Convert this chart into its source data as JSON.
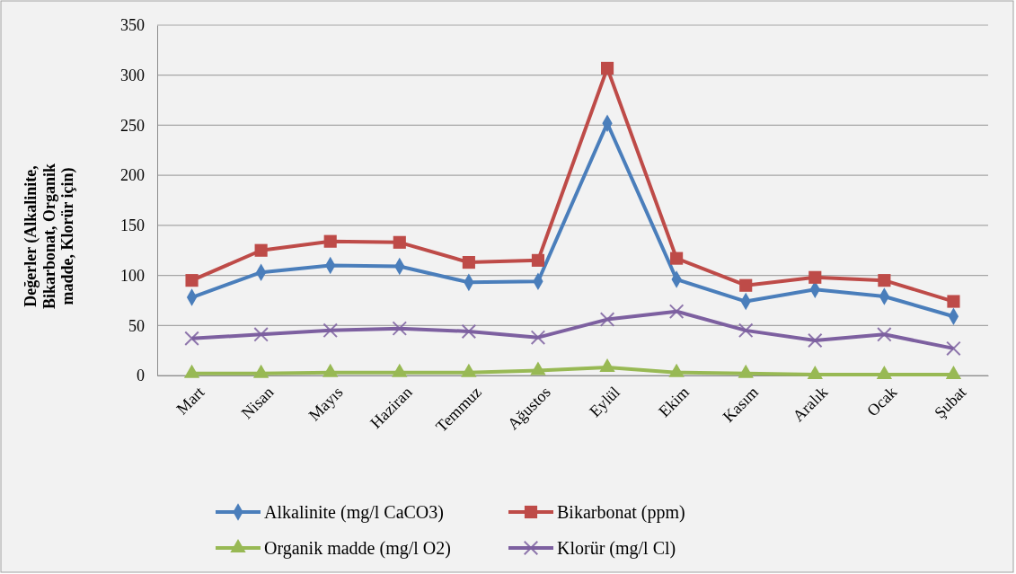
{
  "chart_data": {
    "type": "line",
    "ylabel": "Değerler (Alkalinite, Bikarbonat, Organik madde, Klorür için)",
    "categories": [
      "Mart",
      "Nisan",
      "Mayıs",
      "Haziran",
      "Temmuz",
      "Ağustos",
      "Eylül",
      "Ekim",
      "Kasım",
      "Aralık",
      "Ocak",
      "Şubat"
    ],
    "series": [
      {
        "name": "Alkalinite (mg/l CaCO3)",
        "color": "#4a7ebb",
        "marker": "diamond",
        "values": [
          78,
          103,
          110,
          109,
          93,
          94,
          252,
          96,
          74,
          86,
          79,
          59
        ]
      },
      {
        "name": "Bikarbonat (ppm)",
        "color": "#be4b48",
        "marker": "square",
        "values": [
          95,
          125,
          134,
          133,
          113,
          115,
          307,
          117,
          90,
          98,
          95,
          74
        ]
      },
      {
        "name": "Organik madde (mg/l O2)",
        "color": "#98b954",
        "marker": "triangle",
        "values": [
          2,
          2,
          3,
          3,
          3,
          5,
          8,
          3,
          2,
          1,
          1,
          1
        ]
      },
      {
        "name": "Klorür (mg/l Cl)",
        "color": "#7d60a0",
        "marker": "cross",
        "values": [
          37,
          41,
          45,
          47,
          44,
          38,
          56,
          64,
          45,
          35,
          41,
          27
        ]
      }
    ],
    "ylim": [
      0,
      350
    ],
    "yticks": [
      0,
      50,
      100,
      150,
      200,
      250,
      300,
      350
    ],
    "grid": "y",
    "legend": "bottom"
  }
}
